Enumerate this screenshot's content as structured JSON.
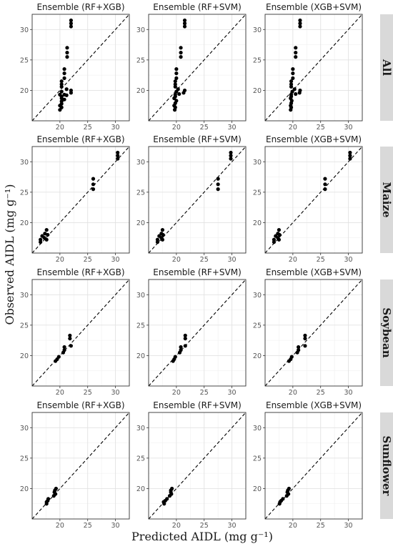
{
  "figure": {
    "xlabel": "Predicted AIDL (mg g⁻¹)",
    "ylabel": "Observed AIDL (mg g⁻¹)"
  },
  "chart_data": {
    "type": "scatter",
    "rows": [
      "All",
      "Maize",
      "Soybean",
      "Sunflower"
    ],
    "columns": [
      "Ensemble (RF+XGB)",
      "Ensemble (RF+SVM)",
      "Ensemble (XGB+SVM)"
    ],
    "xlim": [
      15,
      32.5
    ],
    "ylim": [
      15,
      32.5
    ],
    "ticks": [
      20,
      25,
      30
    ],
    "grid": true,
    "reference_line": "y = x (dashed)",
    "panels": [
      {
        "row": "All",
        "column": "Ensemble (RF+XGB)",
        "points": [
          [
            22,
            31.5
          ],
          [
            22,
            31
          ],
          [
            22,
            30.5
          ],
          [
            21.3,
            27
          ],
          [
            21.3,
            26.2
          ],
          [
            21.3,
            25.5
          ],
          [
            20.8,
            23.5
          ],
          [
            20.8,
            22.8
          ],
          [
            20.8,
            22
          ],
          [
            20.3,
            21.5
          ],
          [
            20.3,
            21
          ],
          [
            20.3,
            20.6
          ],
          [
            21.2,
            20.2
          ],
          [
            20.3,
            19.8
          ],
          [
            20,
            19.3
          ],
          [
            20.8,
            19.3
          ],
          [
            21.2,
            19.2
          ],
          [
            22,
            20
          ],
          [
            22,
            19.6
          ],
          [
            20.3,
            19
          ],
          [
            20.3,
            18.7
          ],
          [
            20.3,
            18.2
          ],
          [
            20.8,
            18.5
          ],
          [
            20.3,
            17.8
          ],
          [
            20,
            17.5
          ],
          [
            20.3,
            17.2
          ],
          [
            20,
            16.8
          ]
        ]
      },
      {
        "row": "All",
        "column": "Ensemble (RF+SVM)",
        "points": [
          [
            21.5,
            31.5
          ],
          [
            21.5,
            31
          ],
          [
            21.5,
            30.5
          ],
          [
            20.8,
            27
          ],
          [
            20.8,
            26.2
          ],
          [
            20.8,
            25.5
          ],
          [
            20,
            23.5
          ],
          [
            20,
            22.8
          ],
          [
            20,
            22
          ],
          [
            19.8,
            21.5
          ],
          [
            19.8,
            21
          ],
          [
            19.8,
            20.6
          ],
          [
            20.3,
            20.2
          ],
          [
            20,
            19.8
          ],
          [
            19.8,
            19.3
          ],
          [
            20.5,
            19.4
          ],
          [
            21.3,
            19.6
          ],
          [
            21.5,
            20
          ],
          [
            19.8,
            19
          ],
          [
            19.6,
            18.7
          ],
          [
            20,
            18.3
          ],
          [
            19.8,
            17.9
          ],
          [
            19.6,
            17.5
          ],
          [
            19.8,
            17.2
          ],
          [
            19.7,
            16.8
          ]
        ]
      },
      {
        "row": "All",
        "column": "Ensemble (XGB+SVM)",
        "points": [
          [
            21.3,
            31.5
          ],
          [
            21.3,
            31
          ],
          [
            21.3,
            30.5
          ],
          [
            20.5,
            27
          ],
          [
            20.5,
            26.2
          ],
          [
            20.5,
            25.5
          ],
          [
            20,
            23.5
          ],
          [
            20,
            22.8
          ],
          [
            20,
            22
          ],
          [
            19.7,
            21.5
          ],
          [
            19.7,
            21
          ],
          [
            19.7,
            20.6
          ],
          [
            20.3,
            20.2
          ],
          [
            19.9,
            19.8
          ],
          [
            19.7,
            19.3
          ],
          [
            20.5,
            19.4
          ],
          [
            21.2,
            19.6
          ],
          [
            21.3,
            20
          ],
          [
            19.7,
            19
          ],
          [
            19.6,
            18.7
          ],
          [
            19.8,
            18.3
          ],
          [
            19.7,
            17.9
          ],
          [
            19.6,
            17.5
          ],
          [
            19.7,
            17.2
          ],
          [
            19.6,
            16.8
          ]
        ]
      },
      {
        "row": "Maize",
        "column": "Ensemble (RF+XGB)",
        "points": [
          [
            30.4,
            31.5
          ],
          [
            30.4,
            31
          ],
          [
            30.4,
            30.5
          ],
          [
            26,
            27.2
          ],
          [
            26,
            26.3
          ],
          [
            26,
            25.5
          ],
          [
            17.6,
            18.8
          ],
          [
            17.3,
            18.2
          ],
          [
            17.8,
            18
          ],
          [
            16.8,
            17.8
          ],
          [
            17.2,
            17.5
          ],
          [
            16.5,
            17.2
          ],
          [
            17.6,
            17.2
          ],
          [
            16.5,
            16.8
          ]
        ]
      },
      {
        "row": "Maize",
        "column": "Ensemble (RF+SVM)",
        "points": [
          [
            29.8,
            31.5
          ],
          [
            29.8,
            31
          ],
          [
            29.8,
            30.5
          ],
          [
            27.5,
            27.2
          ],
          [
            27.5,
            26.3
          ],
          [
            27.5,
            25.5
          ],
          [
            17.5,
            18.8
          ],
          [
            17.3,
            18.2
          ],
          [
            17.6,
            18
          ],
          [
            16.9,
            17.8
          ],
          [
            17.3,
            17.5
          ],
          [
            16.6,
            17.2
          ],
          [
            17.5,
            17.2
          ],
          [
            16.6,
            16.8
          ]
        ]
      },
      {
        "row": "Maize",
        "column": "Ensemble (XGB+SVM)",
        "points": [
          [
            30.3,
            31.5
          ],
          [
            30.3,
            31
          ],
          [
            30.3,
            30.5
          ],
          [
            25.8,
            27.2
          ],
          [
            25.8,
            26.3
          ],
          [
            25.8,
            25.5
          ],
          [
            17.5,
            18.8
          ],
          [
            17.3,
            18.2
          ],
          [
            17.6,
            18
          ],
          [
            16.9,
            17.8
          ],
          [
            17.3,
            17.5
          ],
          [
            16.6,
            17.2
          ],
          [
            17.5,
            17.2
          ],
          [
            16.6,
            16.8
          ]
        ]
      },
      {
        "row": "Soybean",
        "column": "Ensemble (RF+XGB)",
        "points": [
          [
            21.8,
            23.3
          ],
          [
            21.8,
            22.8
          ],
          [
            22,
            21.6
          ],
          [
            20.8,
            21.4
          ],
          [
            20.8,
            20.9
          ],
          [
            20.6,
            20.5
          ],
          [
            19.8,
            19.8
          ],
          [
            19.5,
            19.4
          ],
          [
            19.2,
            19.1
          ]
        ]
      },
      {
        "row": "Soybean",
        "column": "Ensemble (RF+SVM)",
        "points": [
          [
            21.6,
            23.3
          ],
          [
            21.6,
            22.8
          ],
          [
            21.6,
            21.6
          ],
          [
            20.8,
            21.4
          ],
          [
            20.8,
            20.9
          ],
          [
            20.6,
            20.5
          ],
          [
            19.8,
            19.8
          ],
          [
            19.6,
            19.4
          ],
          [
            19.4,
            19.1
          ]
        ]
      },
      {
        "row": "Soybean",
        "column": "Ensemble (XGB+SVM)",
        "points": [
          [
            22.2,
            23.3
          ],
          [
            22.2,
            22.8
          ],
          [
            22.2,
            21.6
          ],
          [
            21,
            21.4
          ],
          [
            21,
            20.9
          ],
          [
            20.8,
            20.5
          ],
          [
            19.8,
            19.8
          ],
          [
            19.6,
            19.4
          ],
          [
            19.3,
            19.1
          ]
        ]
      },
      {
        "row": "Sunflower",
        "column": "Ensemble (RF+XGB)",
        "points": [
          [
            19.3,
            20
          ],
          [
            19.1,
            19.7
          ],
          [
            19,
            19.4
          ],
          [
            19.2,
            19.1
          ],
          [
            18.9,
            18.8
          ],
          [
            17.9,
            18.3
          ],
          [
            17.8,
            18
          ],
          [
            17.6,
            17.8
          ],
          [
            17.6,
            17.5
          ]
        ]
      },
      {
        "row": "Sunflower",
        "column": "Ensemble (RF+SVM)",
        "points": [
          [
            19.2,
            20
          ],
          [
            19,
            19.7
          ],
          [
            19,
            19.4
          ],
          [
            19.1,
            19.1
          ],
          [
            18.8,
            18.8
          ],
          [
            18.3,
            18.3
          ],
          [
            18,
            18
          ],
          [
            17.7,
            17.8
          ],
          [
            17.8,
            17.5
          ]
        ]
      },
      {
        "row": "Sunflower",
        "column": "Ensemble (XGB+SVM)",
        "points": [
          [
            19.3,
            20
          ],
          [
            19.1,
            19.7
          ],
          [
            19,
            19.4
          ],
          [
            19.2,
            19.1
          ],
          [
            18.9,
            18.8
          ],
          [
            18.2,
            18.3
          ],
          [
            17.9,
            18
          ],
          [
            17.7,
            17.8
          ],
          [
            17.6,
            17.5
          ]
        ]
      }
    ]
  }
}
